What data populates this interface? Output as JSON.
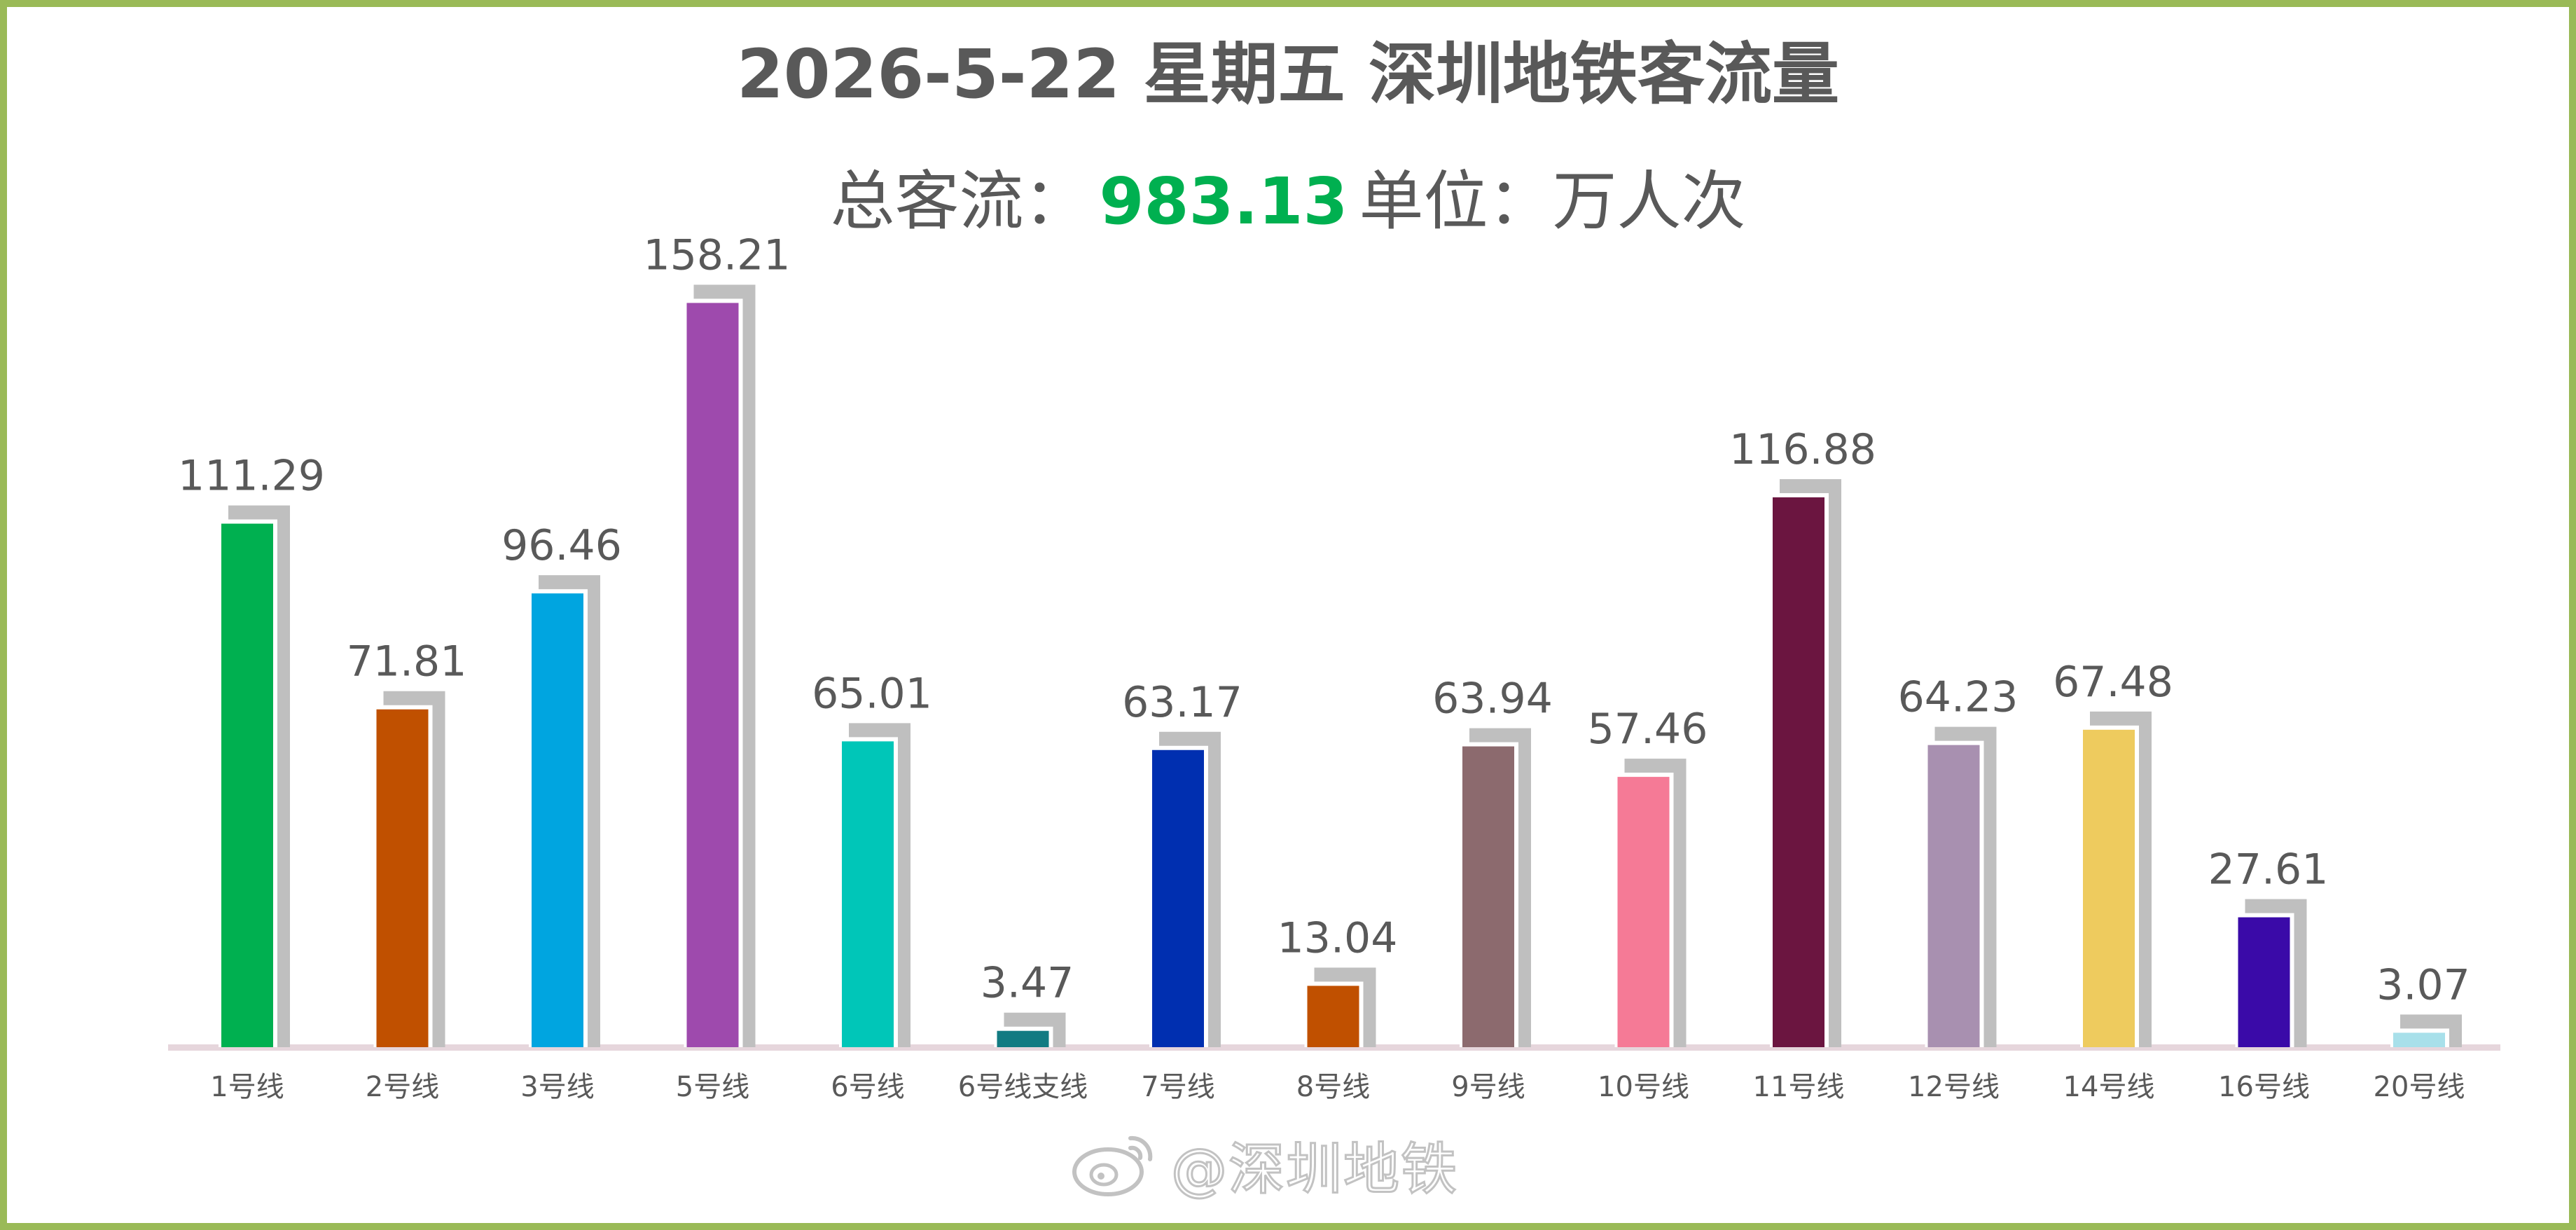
{
  "header": {
    "title": "2026-5-22 星期五  深圳地铁客流量",
    "subtitle_prefix": "总客流：",
    "total": "983.13",
    "subtitle_suffix": "单位：万人次"
  },
  "watermark": {
    "text": "@深圳地铁",
    "icon": "weibo-icon"
  },
  "colors": {
    "frame": "#9aba57",
    "text": "#595959",
    "total": "#00b050",
    "shadow": "#bfbfbf",
    "baseline": "#e6d6dc"
  },
  "chart_data": {
    "type": "bar",
    "title": "2026-5-22 星期五  深圳地铁客流量",
    "ylabel": "",
    "xlabel": "",
    "unit": "万人次",
    "grid": false,
    "ylim": [
      0,
      165
    ],
    "categories": [
      "1号线",
      "2号线",
      "3号线",
      "5号线",
      "6号线",
      "6号线支线",
      "7号线",
      "8号线",
      "9号线",
      "10号线",
      "11号线",
      "12号线",
      "14号线",
      "16号线",
      "20号线"
    ],
    "values": [
      111.29,
      71.81,
      96.46,
      158.21,
      65.01,
      3.47,
      63.17,
      13.04,
      63.94,
      57.46,
      116.88,
      64.23,
      67.48,
      27.61,
      3.07
    ],
    "value_labels": [
      "111.29",
      "71.81",
      "96.46",
      "158.21",
      "65.01",
      "3.47",
      "63.17",
      "13.04",
      "63.94",
      "57.46",
      "116.88",
      "64.23",
      "67.48",
      "27.61",
      "3.07"
    ],
    "bar_colors": [
      "#00b050",
      "#c05000",
      "#00a5e0",
      "#9e4aad",
      "#00c6b8",
      "#127b82",
      "#002fb0",
      "#c05000",
      "#8c6a6e",
      "#f57a96",
      "#6b1540",
      "#a890b0",
      "#eecb5e",
      "#3a0aa8",
      "#a8e0ea"
    ]
  }
}
